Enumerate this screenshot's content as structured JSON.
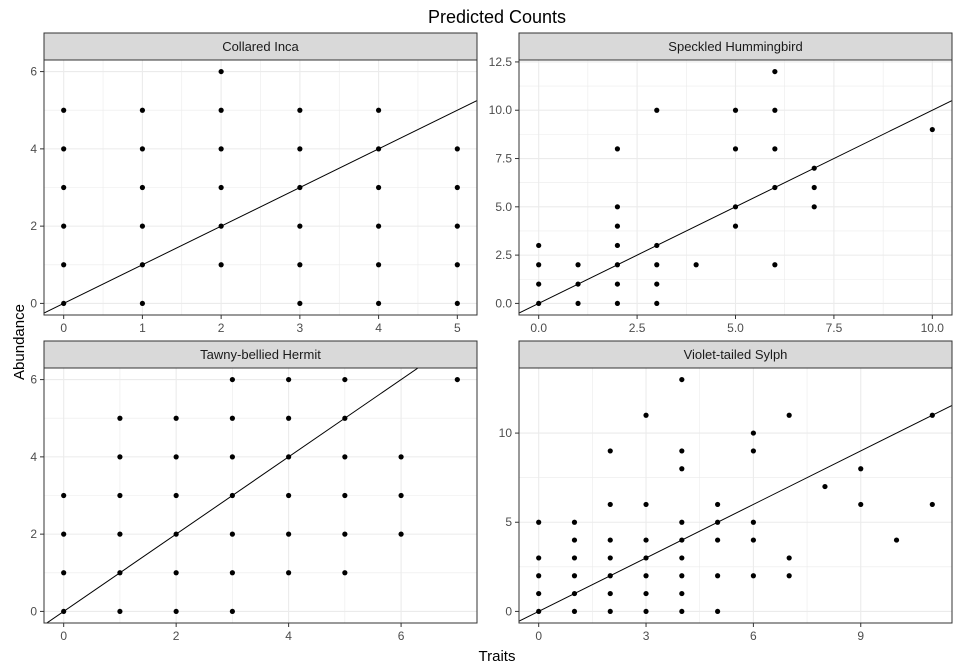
{
  "chart_data": {
    "type": "scatter",
    "title": "Predicted Counts",
    "xlabel": "Traits",
    "ylabel": "Abundance",
    "grid": true,
    "legend": "none",
    "colors": {
      "points": "#000000",
      "line": "#000000",
      "strip": "#d9d9d9",
      "grid": "#ebebeb",
      "border": "#333333"
    },
    "panels": [
      {
        "name": "Collared Inca",
        "xlim": [
          -0.25,
          5.25
        ],
        "ylim": [
          -0.3,
          6.3
        ],
        "xticks": [
          0,
          1,
          2,
          3,
          4,
          5
        ],
        "xtick_labels": [
          "0",
          "1",
          "2",
          "3",
          "4",
          "5"
        ],
        "yticks": [
          0,
          2,
          4,
          6
        ],
        "ytick_labels": [
          "0",
          "2",
          "4",
          "6"
        ],
        "line": {
          "slope": 1,
          "intercept": 0
        },
        "points": [
          [
            0,
            0
          ],
          [
            0,
            1
          ],
          [
            0,
            2
          ],
          [
            0,
            3
          ],
          [
            0,
            4
          ],
          [
            0,
            5
          ],
          [
            1,
            0
          ],
          [
            1,
            1
          ],
          [
            1,
            2
          ],
          [
            1,
            3
          ],
          [
            1,
            4
          ],
          [
            1,
            5
          ],
          [
            2,
            1
          ],
          [
            2,
            2
          ],
          [
            2,
            3
          ],
          [
            2,
            4
          ],
          [
            2,
            5
          ],
          [
            2,
            6
          ],
          [
            3,
            0
          ],
          [
            3,
            1
          ],
          [
            3,
            2
          ],
          [
            3,
            3
          ],
          [
            3,
            4
          ],
          [
            3,
            5
          ],
          [
            4,
            0
          ],
          [
            4,
            1
          ],
          [
            4,
            2
          ],
          [
            4,
            3
          ],
          [
            4,
            4
          ],
          [
            4,
            5
          ],
          [
            5,
            0
          ],
          [
            5,
            1
          ],
          [
            5,
            2
          ],
          [
            5,
            3
          ],
          [
            5,
            4
          ]
        ]
      },
      {
        "name": "Speckled Hummingbird",
        "xlim": [
          -0.5,
          10.5
        ],
        "ylim": [
          -0.6,
          12.6
        ],
        "xticks": [
          0,
          2.5,
          5,
          7.5,
          10
        ],
        "xtick_labels": [
          "0.0",
          "2.5",
          "5.0",
          "7.5",
          "10.0"
        ],
        "yticks": [
          0,
          2.5,
          5,
          7.5,
          10,
          12.5
        ],
        "ytick_labels": [
          "0.0",
          "2.5",
          "5.0",
          "7.5",
          "10.0",
          "12.5"
        ],
        "line": {
          "slope": 1,
          "intercept": 0
        },
        "points": [
          [
            0,
            0
          ],
          [
            0,
            1
          ],
          [
            0,
            2
          ],
          [
            0,
            3
          ],
          [
            1,
            0
          ],
          [
            1,
            1
          ],
          [
            1,
            2
          ],
          [
            2,
            0
          ],
          [
            2,
            1
          ],
          [
            2,
            2
          ],
          [
            2,
            3
          ],
          [
            2,
            4
          ],
          [
            2,
            5
          ],
          [
            2,
            8
          ],
          [
            3,
            0
          ],
          [
            3,
            1
          ],
          [
            3,
            2
          ],
          [
            3,
            3
          ],
          [
            3,
            10
          ],
          [
            4,
            2
          ],
          [
            5,
            4
          ],
          [
            5,
            5
          ],
          [
            5,
            8
          ],
          [
            5,
            10
          ],
          [
            6,
            2
          ],
          [
            6,
            6
          ],
          [
            6,
            8
          ],
          [
            6,
            10
          ],
          [
            6,
            12
          ],
          [
            7,
            5
          ],
          [
            7,
            6
          ],
          [
            7,
            7
          ],
          [
            10,
            9
          ]
        ]
      },
      {
        "name": "Tawny-bellied Hermit",
        "xlim": [
          -0.35,
          7.35
        ],
        "ylim": [
          -0.3,
          6.3
        ],
        "xticks": [
          0,
          2,
          4,
          6
        ],
        "xtick_labels": [
          "0",
          "2",
          "4",
          "6"
        ],
        "yticks": [
          0,
          2,
          4,
          6
        ],
        "ytick_labels": [
          "0",
          "2",
          "4",
          "6"
        ],
        "line": {
          "slope": 1,
          "intercept": 0
        },
        "points": [
          [
            0,
            0
          ],
          [
            0,
            1
          ],
          [
            0,
            2
          ],
          [
            0,
            3
          ],
          [
            1,
            0
          ],
          [
            1,
            1
          ],
          [
            1,
            2
          ],
          [
            1,
            3
          ],
          [
            1,
            4
          ],
          [
            1,
            5
          ],
          [
            2,
            0
          ],
          [
            2,
            1
          ],
          [
            2,
            2
          ],
          [
            2,
            3
          ],
          [
            2,
            4
          ],
          [
            2,
            5
          ],
          [
            3,
            0
          ],
          [
            3,
            1
          ],
          [
            3,
            2
          ],
          [
            3,
            3
          ],
          [
            3,
            4
          ],
          [
            3,
            5
          ],
          [
            3,
            6
          ],
          [
            4,
            1
          ],
          [
            4,
            2
          ],
          [
            4,
            3
          ],
          [
            4,
            4
          ],
          [
            4,
            5
          ],
          [
            4,
            6
          ],
          [
            5,
            1
          ],
          [
            5,
            2
          ],
          [
            5,
            3
          ],
          [
            5,
            4
          ],
          [
            5,
            5
          ],
          [
            5,
            6
          ],
          [
            6,
            2
          ],
          [
            6,
            3
          ],
          [
            6,
            4
          ],
          [
            7,
            6
          ]
        ]
      },
      {
        "name": "Violet-tailed Sylph",
        "xlim": [
          -0.55,
          11.55
        ],
        "ylim": [
          -0.65,
          13.65
        ],
        "xticks": [
          0,
          3,
          6,
          9
        ],
        "xtick_labels": [
          "0",
          "3",
          "6",
          "9"
        ],
        "yticks": [
          0,
          5,
          10
        ],
        "ytick_labels": [
          "0",
          "5",
          "10"
        ],
        "line": {
          "slope": 1,
          "intercept": 0
        },
        "points": [
          [
            0,
            0
          ],
          [
            0,
            1
          ],
          [
            0,
            2
          ],
          [
            0,
            3
          ],
          [
            0,
            5
          ],
          [
            1,
            0
          ],
          [
            1,
            1
          ],
          [
            1,
            2
          ],
          [
            1,
            3
          ],
          [
            1,
            4
          ],
          [
            1,
            5
          ],
          [
            2,
            0
          ],
          [
            2,
            1
          ],
          [
            2,
            2
          ],
          [
            2,
            3
          ],
          [
            2,
            4
          ],
          [
            2,
            6
          ],
          [
            2,
            9
          ],
          [
            3,
            0
          ],
          [
            3,
            1
          ],
          [
            3,
            2
          ],
          [
            3,
            3
          ],
          [
            3,
            4
          ],
          [
            3,
            6
          ],
          [
            3,
            11
          ],
          [
            4,
            0
          ],
          [
            4,
            1
          ],
          [
            4,
            2
          ],
          [
            4,
            3
          ],
          [
            4,
            4
          ],
          [
            4,
            5
          ],
          [
            4,
            8
          ],
          [
            4,
            9
          ],
          [
            4,
            13
          ],
          [
            5,
            0
          ],
          [
            5,
            2
          ],
          [
            5,
            4
          ],
          [
            5,
            5
          ],
          [
            5,
            6
          ],
          [
            6,
            2
          ],
          [
            6,
            4
          ],
          [
            6,
            5
          ],
          [
            6,
            9
          ],
          [
            6,
            10
          ],
          [
            7,
            2
          ],
          [
            7,
            3
          ],
          [
            7,
            11
          ],
          [
            8,
            7
          ],
          [
            9,
            6
          ],
          [
            9,
            8
          ],
          [
            10,
            4
          ],
          [
            11,
            6
          ],
          [
            11,
            11
          ]
        ]
      }
    ]
  }
}
